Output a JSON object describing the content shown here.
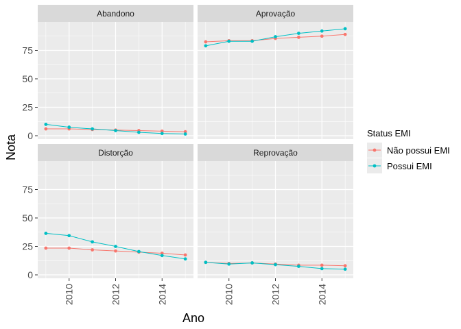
{
  "chart_data": {
    "type": "line",
    "xlabel": "Ano",
    "ylabel": "Nota",
    "x": [
      2009,
      2010,
      2011,
      2012,
      2013,
      2014,
      2015
    ],
    "xticks": [
      2010,
      2012,
      2014
    ],
    "xlim": [
      2008.65,
      2015.35
    ],
    "yticks": [
      0,
      25,
      50,
      75
    ],
    "ylim": [
      -3,
      100
    ],
    "grid": true,
    "legend": {
      "title": "Status EMI",
      "position": "right",
      "items": [
        {
          "label": "Não possui EMI",
          "color": "#F8766D"
        },
        {
          "label": "Possui EMI",
          "color": "#00BFC4"
        }
      ]
    },
    "panels": [
      {
        "strip": "Abandono",
        "series": [
          {
            "name": "Não possui EMI",
            "color": "#F8766D",
            "values": [
              6,
              6,
              5.5,
              5,
              4.5,
              4,
              3.5
            ]
          },
          {
            "name": "Possui EMI",
            "color": "#00BFC4",
            "values": [
              10,
              7.5,
              6,
              4.5,
              3,
              2,
              1.5
            ]
          }
        ]
      },
      {
        "strip": "Aprovação",
        "series": [
          {
            "name": "Não possui EMI",
            "color": "#F8766D",
            "values": [
              82.5,
              83.5,
              83.5,
              85.5,
              86.5,
              87.5,
              89
            ]
          },
          {
            "name": "Possui EMI",
            "color": "#00BFC4",
            "values": [
              79,
              83,
              83,
              87,
              90,
              92,
              94
            ]
          }
        ]
      },
      {
        "strip": "Distorção",
        "series": [
          {
            "name": "Não possui EMI",
            "color": "#F8766D",
            "values": [
              23.5,
              23.5,
              22,
              21,
              20,
              19,
              17.5
            ]
          },
          {
            "name": "Possui EMI",
            "color": "#00BFC4",
            "values": [
              36.5,
              34.5,
              29,
              25,
              20.5,
              17,
              14
            ]
          }
        ]
      },
      {
        "strip": "Reprovação",
        "series": [
          {
            "name": "Não possui EMI",
            "color": "#F8766D",
            "values": [
              11,
              10,
              10.5,
              9.5,
              8.5,
              8.5,
              8
            ]
          },
          {
            "name": "Possui EMI",
            "color": "#00BFC4",
            "values": [
              11,
              9.5,
              10.5,
              9,
              7.5,
              5.5,
              5
            ]
          }
        ]
      }
    ]
  }
}
